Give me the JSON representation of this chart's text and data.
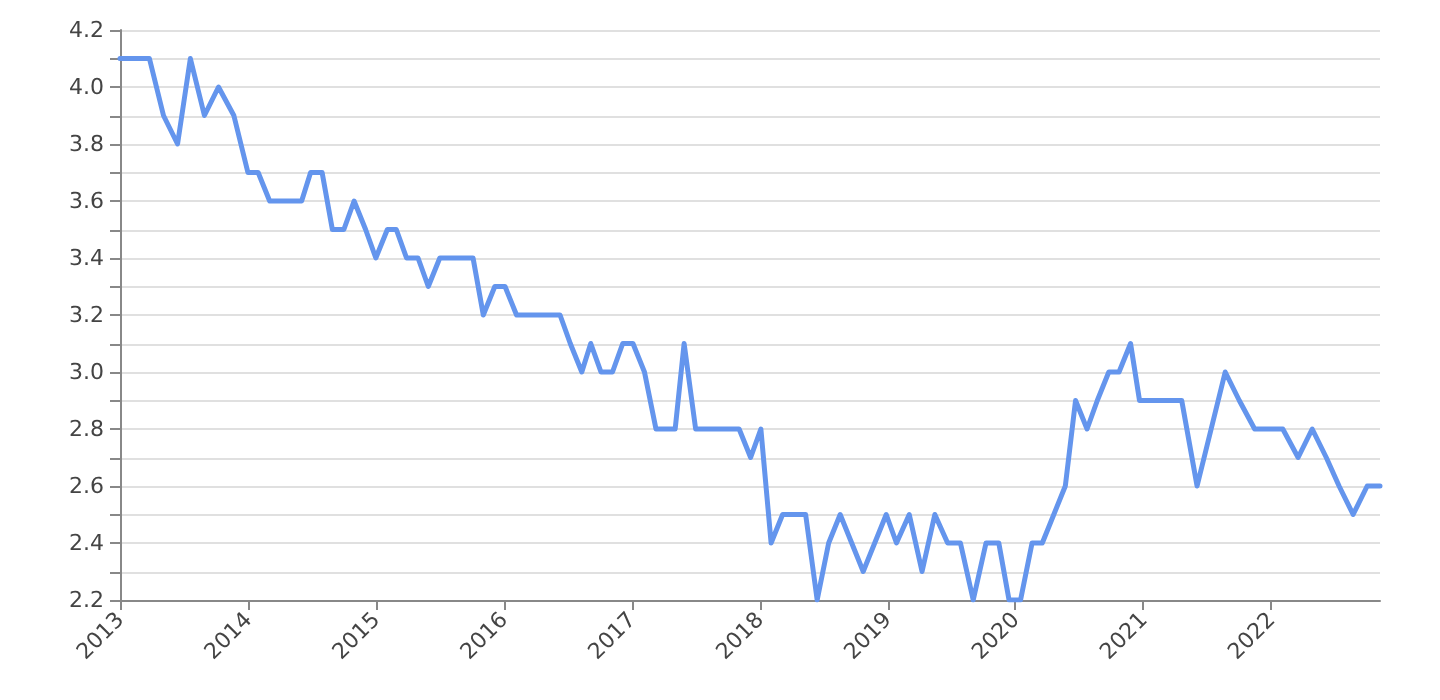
{
  "chart_data": {
    "type": "line",
    "line_style": "solid",
    "marker": "none",
    "grid": "y",
    "x": [
      2013.0,
      2013.23,
      2013.34,
      2013.45,
      2013.55,
      2013.66,
      2013.77,
      2013.89,
      2014.0,
      2014.08,
      2014.17,
      2014.42,
      2014.49,
      2014.58,
      2014.66,
      2014.75,
      2014.83,
      2014.92,
      2015.0,
      2015.09,
      2015.16,
      2015.24,
      2015.33,
      2015.41,
      2015.5,
      2015.76,
      2015.84,
      2015.93,
      2016.01,
      2016.1,
      2016.44,
      2016.52,
      2016.61,
      2016.68,
      2016.76,
      2016.85,
      2016.93,
      2017.01,
      2017.1,
      2017.19,
      2017.34,
      2017.41,
      2017.5,
      2017.84,
      2017.93,
      2018.01,
      2018.09,
      2018.18,
      2018.36,
      2018.45,
      2018.54,
      2018.63,
      2018.72,
      2018.81,
      2018.9,
      2018.99,
      2019.07,
      2019.17,
      2019.27,
      2019.37,
      2019.47,
      2019.57,
      2019.67,
      2019.77,
      2019.87,
      2019.95,
      2020.04,
      2020.13,
      2020.21,
      2020.3,
      2020.39,
      2020.47,
      2020.56,
      2020.64,
      2020.73,
      2020.81,
      2020.9,
      2020.97,
      2021.3,
      2021.42,
      2021.53,
      2021.64,
      2021.75,
      2021.87,
      2022.09,
      2022.21,
      2022.32,
      2022.43,
      2022.53,
      2022.64,
      2022.75,
      2022.85
    ],
    "series": [
      {
        "color": "#6495ed",
        "values": [
          4.1,
          4.1,
          3.9,
          3.8,
          4.1,
          3.9,
          4.0,
          3.9,
          3.7,
          3.7,
          3.6,
          3.6,
          3.7,
          3.7,
          3.5,
          3.5,
          3.6,
          3.5,
          3.4,
          3.5,
          3.5,
          3.4,
          3.4,
          3.3,
          3.4,
          3.4,
          3.2,
          3.3,
          3.3,
          3.2,
          3.2,
          3.1,
          3.0,
          3.1,
          3.0,
          3.0,
          3.1,
          3.1,
          3.0,
          2.8,
          2.8,
          3.1,
          2.8,
          2.8,
          2.7,
          2.8,
          2.4,
          2.5,
          2.5,
          2.2,
          2.4,
          2.5,
          2.4,
          2.3,
          2.4,
          2.5,
          2.4,
          2.5,
          2.3,
          2.5,
          2.4,
          2.4,
          2.2,
          2.4,
          2.4,
          2.2,
          2.2,
          2.4,
          2.4,
          2.5,
          2.6,
          2.9,
          2.8,
          2.9,
          3.0,
          3.0,
          3.1,
          2.9,
          2.9,
          2.6,
          2.8,
          3.0,
          2.9,
          2.8,
          2.8,
          2.7,
          2.8,
          2.7,
          2.6,
          2.5,
          2.6,
          2.6
        ]
      }
    ],
    "xlim": [
      2013,
      2022.85
    ],
    "xticks": [
      2013,
      2014,
      2015,
      2016,
      2017,
      2018,
      2019,
      2020,
      2021,
      2022
    ],
    "ylim": [
      2.2,
      4.2
    ],
    "yticks": [
      2.2,
      {
        "value": 2.3,
        "label": null
      },
      2.4,
      {
        "value": 2.5,
        "label": null
      },
      2.6,
      {
        "value": 2.7,
        "label": null
      },
      2.8,
      {
        "value": 2.9,
        "label": null
      },
      {
        "value": 3.0,
        "label": "3.0"
      },
      {
        "value": 3.1,
        "label": null
      },
      3.2,
      {
        "value": 3.3,
        "label": null
      },
      3.4,
      {
        "value": 3.5,
        "label": null
      },
      3.6,
      {
        "value": 3.7,
        "label": null
      },
      3.8,
      {
        "value": 3.9,
        "label": null
      },
      {
        "value": 4.0,
        "label": "4.0"
      },
      {
        "value": 4.1,
        "label": null
      },
      4.2
    ]
  }
}
